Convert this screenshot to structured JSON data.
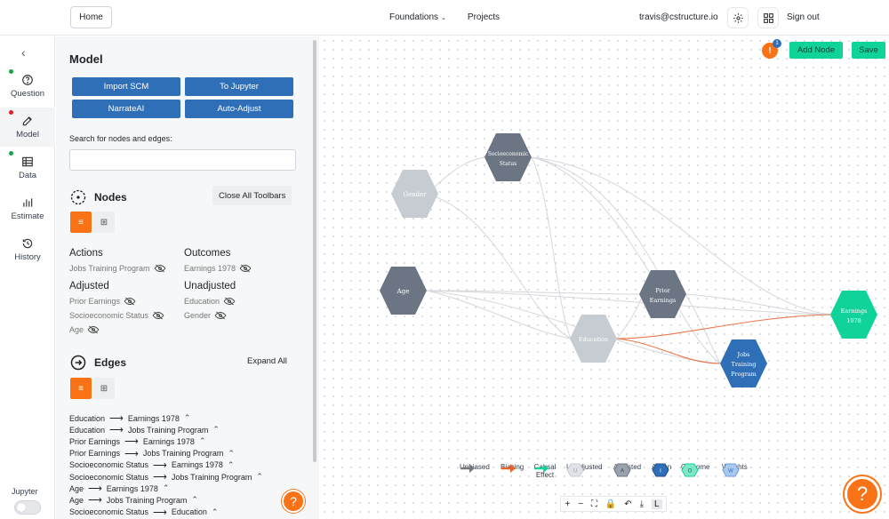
{
  "header": {
    "home_label": "Home",
    "nav_foundations": "Foundations",
    "nav_projects": "Projects",
    "user_email": "travis@cstructure.io",
    "sign_out": "Sign out"
  },
  "rail": {
    "items": [
      {
        "label": "Question",
        "dot_color": "#16a34a"
      },
      {
        "label": "Model",
        "dot_color": "#dc2626"
      },
      {
        "label": "Data",
        "dot_color": "#16a34a"
      },
      {
        "label": "Estimate",
        "dot_color": ""
      },
      {
        "label": "History",
        "dot_color": ""
      }
    ],
    "jupyter_label": "Jupyter"
  },
  "panel": {
    "title": "Model",
    "buttons": [
      "Import SCM",
      "To Jupyter",
      "NarrateAI",
      "Auto-Adjust"
    ],
    "search_label": "Search for nodes and edges:",
    "search_value": "",
    "nodes_title": "Nodes",
    "close_toolbars": "Close All Toolbars",
    "groups": {
      "actions_title": "Actions",
      "actions": [
        "Jobs Training Program"
      ],
      "outcomes_title": "Outcomes",
      "outcomes": [
        "Earnings 1978"
      ],
      "adjusted_title": "Adjusted",
      "adjusted": [
        "Prior Earnings",
        "Socioeconomic Status",
        "Age"
      ],
      "unadjusted_title": "Unadjusted",
      "unadjusted": [
        "Education",
        "Gender"
      ]
    },
    "edges_title": "Edges",
    "expand_all": "Expand All",
    "edges": [
      {
        "from": "Education",
        "to": "Earnings 1978"
      },
      {
        "from": "Education",
        "to": "Jobs Training Program"
      },
      {
        "from": "Prior Earnings",
        "to": "Earnings 1978"
      },
      {
        "from": "Prior Earnings",
        "to": "Jobs Training Program"
      },
      {
        "from": "Socioeconomic Status",
        "to": "Earnings 1978"
      },
      {
        "from": "Socioeconomic Status",
        "to": "Jobs Training Program"
      },
      {
        "from": "Age",
        "to": "Earnings 1978"
      },
      {
        "from": "Age",
        "to": "Jobs Training Program"
      },
      {
        "from": "Socioeconomic Status",
        "to": "Education"
      }
    ]
  },
  "canvas": {
    "warning_badge": "!",
    "warning_count": "1",
    "add_node": "Add Node",
    "save": "Save",
    "nodes": {
      "gender": "Gender",
      "ses_line1": "Socioeconomic",
      "ses_line2": "Status",
      "age": "Age",
      "education": "Education",
      "prior_line1": "Prior",
      "prior_line2": "Earnings",
      "earnings_line1": "Earnings",
      "earnings_line2": "1978",
      "jobs_line1": "Jobs",
      "jobs_line2": "Training",
      "jobs_line3": "Program"
    },
    "node_colors": {
      "unadjusted": "#c7ccd3",
      "adjusted": "#6b7584",
      "action": "#2f6fb7",
      "outcome": "#10d39a",
      "biasing": "#e8622c"
    },
    "legend": [
      {
        "label": "Unbiased"
      },
      {
        "label": "Biasing"
      },
      {
        "label": "Causal Effect"
      },
      {
        "label": "Unadjusted"
      },
      {
        "label": "Adjusted"
      },
      {
        "label": "Action"
      },
      {
        "label": "Outcome"
      },
      {
        "label": "Weights"
      }
    ],
    "zoom_controls": [
      "+",
      "−",
      "⛶",
      "🔒",
      "↶",
      "⤓",
      "L"
    ]
  }
}
